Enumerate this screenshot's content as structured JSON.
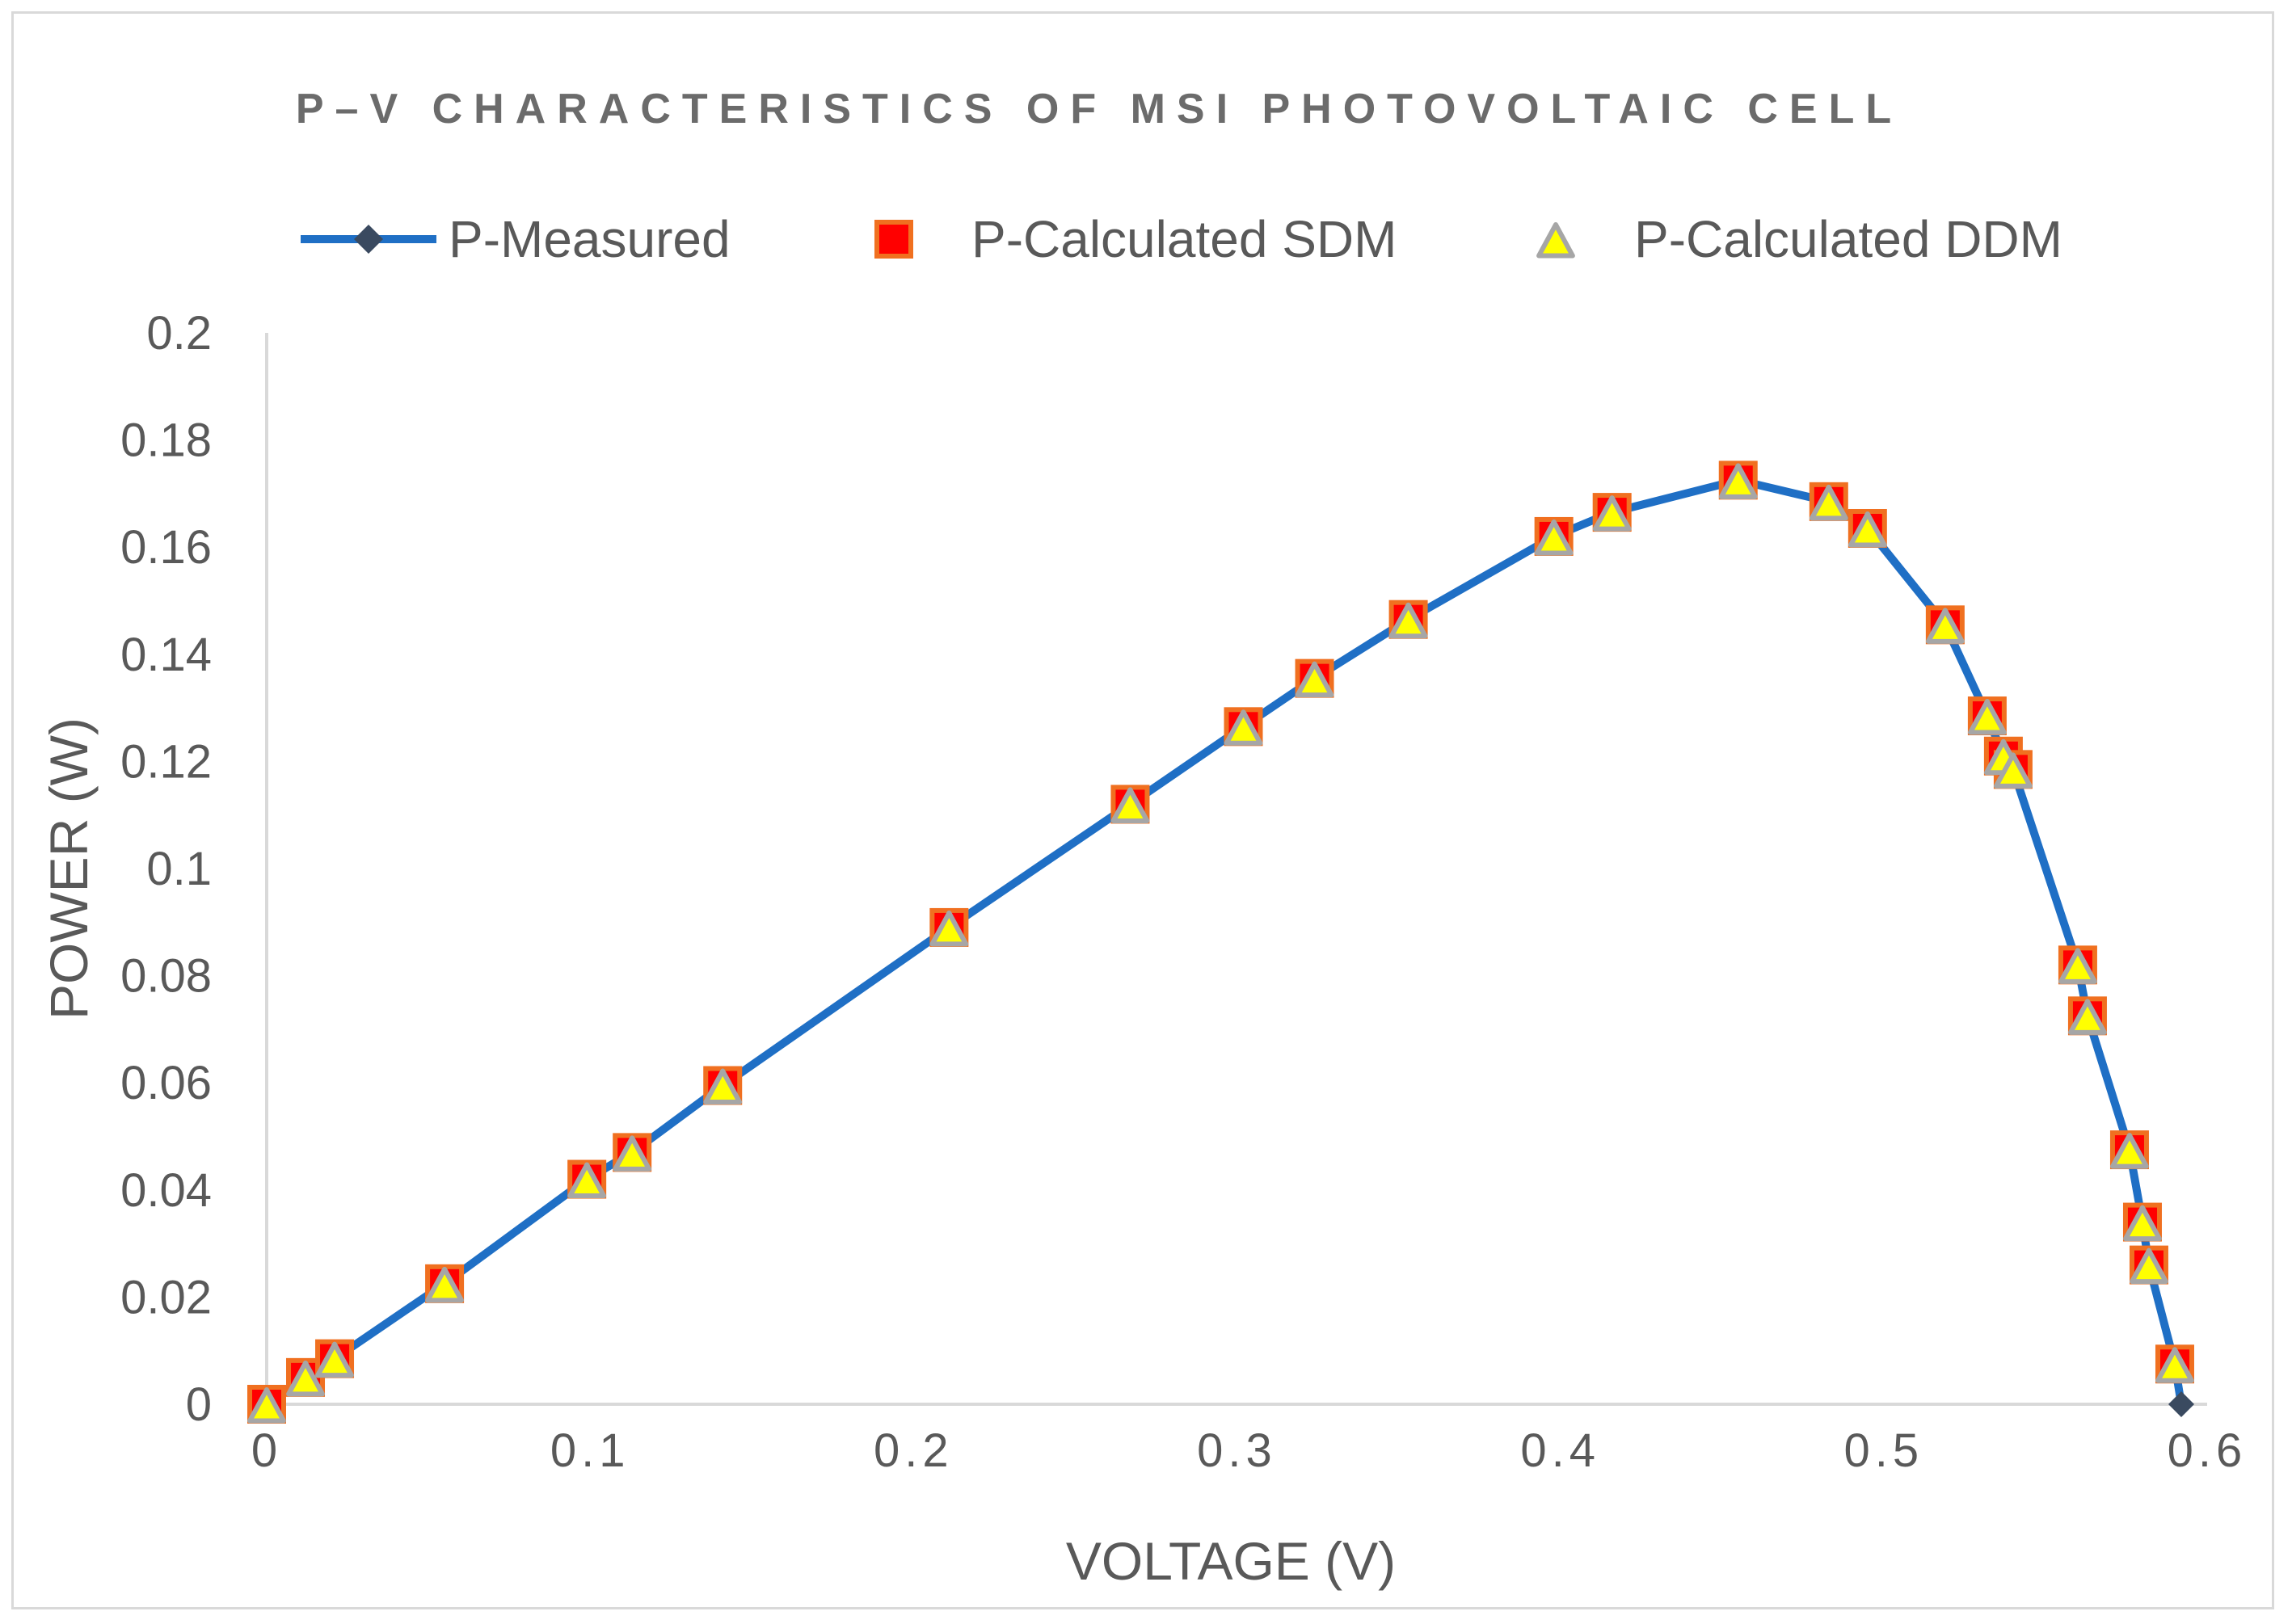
{
  "chart_data": {
    "type": "line",
    "title": "P–V CHARACTERISTICS OF MSI PHOTOVOLTAIC CELL",
    "xlabel": "VOLTAGE (V)",
    "ylabel": "POWER (W)",
    "xlim": [
      0,
      0.6
    ],
    "ylim": [
      0,
      0.2
    ],
    "xticks": [
      "0",
      "0.1",
      "0.2",
      "0.3",
      "0.4",
      "0.5",
      "0.6"
    ],
    "yticks": [
      "0",
      "0.02",
      "0.04",
      "0.06",
      "0.08",
      "0.1",
      "0.12",
      "0.14",
      "0.16",
      "0.18",
      "0.2"
    ],
    "grid": false,
    "legend_position": "top",
    "x": [
      0.0,
      0.012,
      0.021,
      0.055,
      0.099,
      0.113,
      0.141,
      0.211,
      0.267,
      0.302,
      0.324,
      0.353,
      0.398,
      0.416,
      0.455,
      0.483,
      0.495,
      0.519,
      0.532,
      0.537,
      0.54,
      0.56,
      0.563,
      0.576,
      0.58,
      0.582,
      0.59,
      0.592
    ],
    "series": [
      {
        "name": "P-Measured",
        "style": "line-diamond",
        "color": "#1f6fc5",
        "values": [
          0.0,
          0.005,
          0.0085,
          0.0225,
          0.042,
          0.047,
          0.0595,
          0.089,
          0.112,
          0.1265,
          0.1355,
          0.1465,
          0.162,
          0.1665,
          0.1725,
          0.1685,
          0.1635,
          0.1455,
          0.1285,
          0.121,
          0.1185,
          0.082,
          0.0725,
          0.0475,
          0.034,
          0.026,
          0.0075,
          0.0
        ]
      },
      {
        "name": "P-Calculated SDM",
        "style": "square",
        "color": "#ff0000",
        "stroke": "#f07020",
        "values": [
          0.0,
          0.005,
          0.0085,
          0.0225,
          0.042,
          0.047,
          0.0595,
          0.089,
          0.112,
          0.1265,
          0.1355,
          0.1465,
          0.162,
          0.1665,
          0.1725,
          0.1685,
          0.1635,
          0.1455,
          0.1285,
          0.121,
          0.1185,
          0.082,
          0.0725,
          0.0475,
          0.034,
          0.026,
          0.0075,
          null
        ]
      },
      {
        "name": "P-Calculated DDM",
        "style": "triangle",
        "color": "#ffff00",
        "stroke": "#a6a6a6",
        "values": [
          0.0,
          0.005,
          0.0085,
          0.0225,
          0.042,
          0.047,
          0.0595,
          0.089,
          0.112,
          0.1265,
          0.1355,
          0.1465,
          0.162,
          0.1665,
          0.1725,
          0.1685,
          0.1635,
          0.1455,
          0.1285,
          0.121,
          0.1185,
          0.082,
          0.0725,
          0.0475,
          0.034,
          0.026,
          0.0075,
          null
        ]
      }
    ]
  }
}
